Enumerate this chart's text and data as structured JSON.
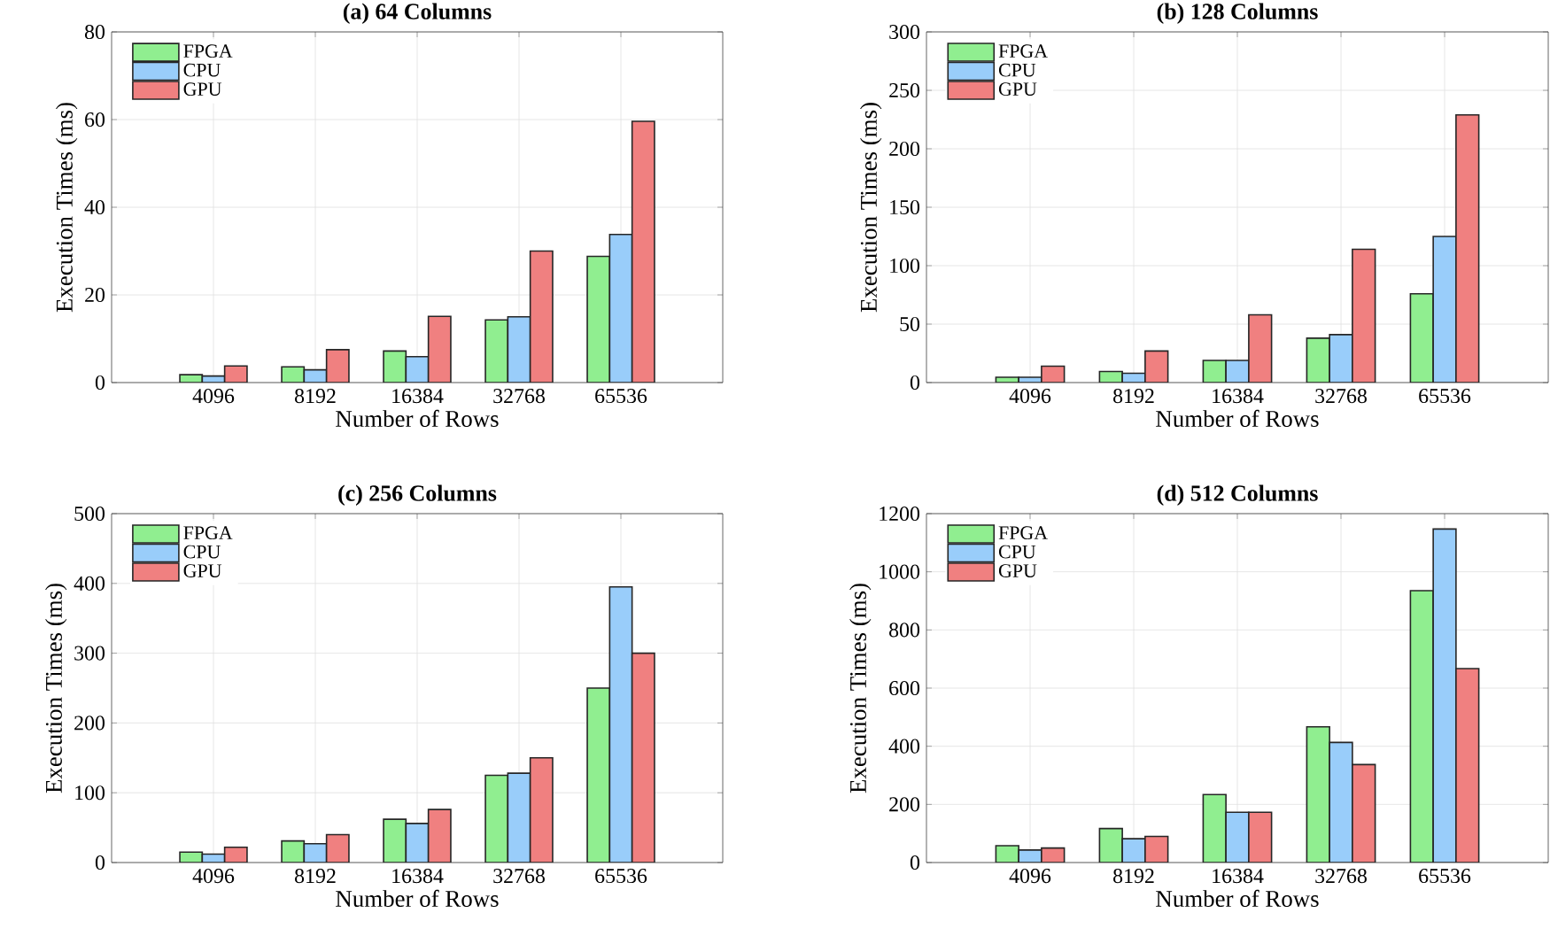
{
  "chart_data": [
    {
      "type": "bar",
      "title": "(a) 64 Columns",
      "xlabel": "Number of Rows",
      "ylabel": "Execution Times (ms)",
      "categories": [
        "4096",
        "8192",
        "16384",
        "32768",
        "65536"
      ],
      "ylim": [
        0,
        80
      ],
      "yticks": [
        0,
        20,
        40,
        60,
        80
      ],
      "grid": true,
      "legend": "top left",
      "series": [
        {
          "name": "FPGA",
          "color": "#90ee90",
          "values": [
            1.8,
            3.6,
            7.2,
            14.3,
            28.8
          ]
        },
        {
          "name": "CPU",
          "color": "#99cdfa",
          "values": [
            1.5,
            2.9,
            5.9,
            15.0,
            33.8
          ]
        },
        {
          "name": "GPU",
          "color": "#f08080",
          "values": [
            3.8,
            7.5,
            15.1,
            30.0,
            59.6
          ]
        }
      ]
    },
    {
      "type": "bar",
      "title": "(b) 128 Columns",
      "xlabel": "Number of Rows",
      "ylabel": "Execution Times (ms)",
      "categories": [
        "4096",
        "8192",
        "16384",
        "32768",
        "65536"
      ],
      "ylim": [
        0,
        300
      ],
      "yticks": [
        0,
        50,
        100,
        150,
        200,
        250,
        300
      ],
      "grid": true,
      "legend": "top left",
      "series": [
        {
          "name": "FPGA",
          "color": "#90ee90",
          "values": [
            4.5,
            9.5,
            19,
            38,
            76
          ]
        },
        {
          "name": "CPU",
          "color": "#99cdfa",
          "values": [
            4.5,
            8,
            19,
            41,
            125
          ]
        },
        {
          "name": "GPU",
          "color": "#f08080",
          "values": [
            14,
            27,
            58,
            114,
            229
          ]
        }
      ]
    },
    {
      "type": "bar",
      "title": "(c) 256 Columns",
      "xlabel": "Number of Rows",
      "ylabel": "Execution Times (ms)",
      "categories": [
        "4096",
        "8192",
        "16384",
        "32768",
        "65536"
      ],
      "ylim": [
        0,
        500
      ],
      "yticks": [
        0,
        100,
        200,
        300,
        400,
        500
      ],
      "grid": true,
      "legend": "top left",
      "series": [
        {
          "name": "FPGA",
          "color": "#90ee90",
          "values": [
            15,
            31,
            62,
            125,
            250
          ]
        },
        {
          "name": "CPU",
          "color": "#99cdfa",
          "values": [
            12,
            27,
            56,
            128,
            395
          ]
        },
        {
          "name": "GPU",
          "color": "#f08080",
          "values": [
            22,
            40,
            76,
            150,
            300
          ]
        }
      ]
    },
    {
      "type": "bar",
      "title": "(d) 512 Columns",
      "xlabel": "Number of Rows",
      "ylabel": "Execution Times (ms)",
      "categories": [
        "4096",
        "8192",
        "16384",
        "32768",
        "65536"
      ],
      "ylim": [
        0,
        1200
      ],
      "yticks": [
        0,
        200,
        400,
        600,
        800,
        1000,
        1200
      ],
      "grid": true,
      "legend": "top left",
      "series": [
        {
          "name": "FPGA",
          "color": "#90ee90",
          "values": [
            58,
            117,
            234,
            467,
            935
          ]
        },
        {
          "name": "CPU",
          "color": "#99cdfa",
          "values": [
            43,
            82,
            173,
            413,
            1147
          ]
        },
        {
          "name": "GPU",
          "color": "#f08080",
          "values": [
            50,
            90,
            173,
            337,
            667
          ]
        }
      ]
    }
  ]
}
